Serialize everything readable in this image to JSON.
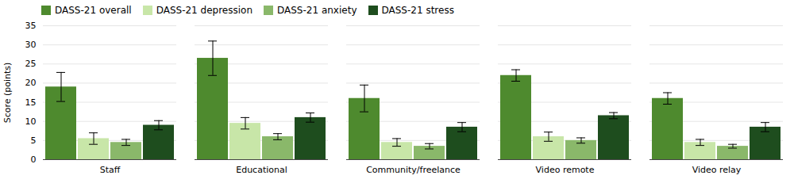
{
  "chart_data": {
    "type": "bar",
    "categories": [
      "Staff",
      "Educational",
      "Community/freelance",
      "Video remote",
      "Video relay"
    ],
    "series": [
      {
        "name": "DASS-21 overall",
        "color": "#4e8a2e",
        "values": [
          19.0,
          26.5,
          16.0,
          22.0,
          16.0
        ],
        "errors": [
          3.8,
          4.5,
          3.5,
          1.5,
          1.5
        ]
      },
      {
        "name": "DASS-21 depression",
        "color": "#c8e6a8",
        "values": [
          5.5,
          9.5,
          4.5,
          6.0,
          4.5
        ],
        "errors": [
          1.5,
          1.5,
          1.0,
          1.2,
          0.8
        ]
      },
      {
        "name": "DASS-21 anxiety",
        "color": "#8ab86a",
        "values": [
          4.5,
          6.0,
          3.5,
          5.0,
          3.5
        ],
        "errors": [
          0.8,
          0.8,
          0.7,
          0.7,
          0.5
        ]
      },
      {
        "name": "DASS-21 stress",
        "color": "#1e4d1e",
        "values": [
          9.0,
          11.0,
          8.5,
          11.5,
          8.5
        ],
        "errors": [
          1.2,
          1.2,
          1.2,
          0.8,
          1.2
        ]
      }
    ],
    "ylim": [
      0,
      35
    ],
    "yticks": [
      0,
      5,
      10,
      15,
      20,
      25,
      30,
      35
    ],
    "ylabel": "Score (points)",
    "grid": true,
    "legend": "upper left"
  }
}
